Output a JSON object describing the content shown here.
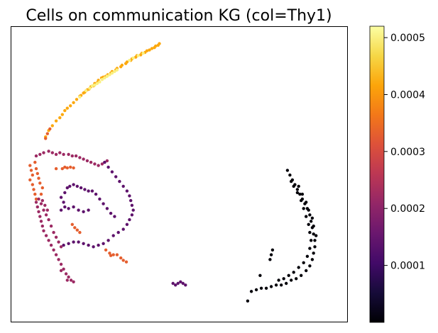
{
  "chart_data": {
    "type": "scatter",
    "title": "Cells on communication KG (col=Thy1)",
    "xlabel": "",
    "ylabel": "",
    "axes_ticks_visible": false,
    "colormap": "inferno",
    "colorbar": {
      "vmin": 0.0,
      "vmax": 0.00052,
      "ticks": [
        0.0001,
        0.0002,
        0.0003,
        0.0004,
        0.0005
      ],
      "tick_labels": [
        "0.0001",
        "0.0002",
        "0.0003",
        "0.0004",
        "0.0005"
      ],
      "placement": "right"
    },
    "series": [
      {
        "color_value": 0.00042,
        "points": [
          [
            0.55,
            0.38
          ],
          [
            0.6,
            0.3
          ],
          [
            0.66,
            0.24
          ],
          [
            0.72,
            0.18
          ],
          [
            0.78,
            0.14
          ],
          [
            0.82,
            0.1
          ],
          [
            0.86,
            0.05
          ],
          [
            0.9,
            0.02
          ],
          [
            0.95,
            -0.01
          ],
          [
            1.0,
            -0.05
          ],
          [
            1.05,
            -0.09
          ],
          [
            1.1,
            -0.13
          ],
          [
            1.16,
            -0.17
          ],
          [
            1.22,
            -0.21
          ],
          [
            1.28,
            -0.25
          ],
          [
            1.34,
            -0.29
          ],
          [
            1.4,
            -0.33
          ],
          [
            1.48,
            -0.37
          ],
          [
            1.55,
            -0.4
          ],
          [
            1.62,
            -0.44
          ],
          [
            1.7,
            -0.48
          ],
          [
            1.78,
            -0.52
          ],
          [
            1.86,
            -0.56
          ],
          [
            1.94,
            -0.6
          ],
          [
            2.02,
            -0.64
          ],
          [
            2.1,
            -0.67
          ],
          [
            2.18,
            -0.7
          ],
          [
            2.26,
            -0.73
          ],
          [
            2.32,
            -0.76
          ],
          [
            2.38,
            -0.79
          ],
          [
            1.45,
            -0.36
          ],
          [
            1.52,
            -0.38
          ],
          [
            1.6,
            -0.42
          ],
          [
            1.68,
            -0.46
          ],
          [
            1.76,
            -0.5
          ],
          [
            1.84,
            -0.54
          ],
          [
            1.92,
            -0.58
          ],
          [
            2.0,
            -0.62
          ],
          [
            2.08,
            -0.65
          ],
          [
            2.15,
            -0.68
          ],
          [
            2.22,
            -0.71
          ],
          [
            2.3,
            -0.74
          ],
          [
            2.36,
            -0.77
          ],
          [
            1.25,
            -0.22
          ],
          [
            1.32,
            -0.26
          ],
          [
            1.38,
            -0.3
          ],
          [
            1.18,
            -0.18
          ],
          [
            1.12,
            -0.14
          ]
        ]
      },
      {
        "color_value": 0.0005,
        "points": [
          [
            1.3,
            -0.26
          ],
          [
            1.34,
            -0.27
          ],
          [
            1.38,
            -0.29
          ],
          [
            1.42,
            -0.31
          ],
          [
            1.46,
            -0.34
          ],
          [
            1.5,
            -0.36
          ],
          [
            1.54,
            -0.38
          ],
          [
            1.58,
            -0.4
          ],
          [
            1.62,
            -0.42
          ],
          [
            1.66,
            -0.44
          ],
          [
            1.2,
            -0.2
          ],
          [
            1.26,
            -0.23
          ],
          [
            1.9,
            -0.58
          ],
          [
            1.96,
            -0.61
          ],
          [
            2.04,
            -0.64
          ],
          [
            2.12,
            -0.67
          ],
          [
            1.1,
            -0.12
          ],
          [
            1.7,
            -0.46
          ]
        ]
      },
      {
        "color_value": 0.00033,
        "points": [
          [
            0.55,
            0.4
          ],
          [
            0.58,
            0.34
          ],
          [
            0.62,
            0.28
          ],
          [
            0.3,
            0.74
          ],
          [
            0.32,
            0.8
          ],
          [
            0.34,
            0.86
          ],
          [
            0.3,
            0.92
          ],
          [
            0.34,
            0.98
          ],
          [
            0.36,
            1.04
          ],
          [
            0.38,
            1.1
          ],
          [
            0.4,
            1.16
          ],
          [
            0.4,
            0.78
          ],
          [
            0.42,
            0.84
          ],
          [
            0.44,
            0.9
          ],
          [
            0.46,
            0.96
          ],
          [
            0.38,
            0.7
          ],
          [
            0.5,
            1.02
          ],
          [
            0.48,
            1.1
          ],
          [
            0.82,
            0.78
          ],
          [
            0.86,
            0.76
          ],
          [
            0.9,
            0.77
          ],
          [
            0.95,
            0.76
          ],
          [
            1.0,
            0.77
          ],
          [
            0.98,
            1.48
          ],
          [
            1.02,
            1.52
          ],
          [
            1.06,
            1.55
          ],
          [
            1.1,
            1.58
          ],
          [
            1.52,
            1.8
          ],
          [
            1.58,
            1.84
          ],
          [
            1.64,
            1.86
          ],
          [
            1.7,
            1.86
          ],
          [
            1.76,
            1.9
          ],
          [
            1.8,
            1.93
          ],
          [
            1.85,
            1.95
          ],
          [
            1.6,
            1.87
          ],
          [
            0.72,
            0.78
          ]
        ]
      },
      {
        "color_value": 0.00022,
        "points": [
          [
            0.4,
            1.2
          ],
          [
            0.42,
            1.26
          ],
          [
            0.44,
            1.32
          ],
          [
            0.46,
            1.38
          ],
          [
            0.48,
            1.44
          ],
          [
            0.5,
            1.5
          ],
          [
            0.52,
            1.56
          ],
          [
            0.56,
            1.62
          ],
          [
            0.6,
            1.68
          ],
          [
            0.64,
            1.74
          ],
          [
            0.68,
            1.8
          ],
          [
            0.72,
            1.86
          ],
          [
            0.76,
            1.92
          ],
          [
            0.8,
            1.98
          ],
          [
            0.84,
            2.04
          ],
          [
            0.88,
            2.1
          ],
          [
            0.92,
            2.14
          ],
          [
            0.96,
            2.18
          ],
          [
            1.0,
            2.2
          ],
          [
            0.44,
            1.16
          ],
          [
            0.48,
            1.22
          ],
          [
            0.52,
            1.3
          ],
          [
            0.56,
            1.36
          ],
          [
            0.6,
            1.42
          ],
          [
            0.64,
            1.5
          ],
          [
            0.68,
            1.58
          ],
          [
            0.72,
            1.64
          ],
          [
            0.76,
            1.7
          ],
          [
            0.8,
            1.76
          ],
          [
            0.5,
            1.18
          ],
          [
            0.54,
            1.24
          ],
          [
            0.58,
            1.3
          ],
          [
            0.4,
            0.62
          ],
          [
            0.46,
            0.6
          ],
          [
            0.52,
            0.58
          ],
          [
            0.6,
            0.56
          ],
          [
            0.66,
            0.58
          ],
          [
            0.72,
            0.6
          ],
          [
            0.78,
            0.58
          ],
          [
            0.84,
            0.6
          ],
          [
            0.92,
            0.6
          ],
          [
            0.98,
            0.62
          ],
          [
            1.04,
            0.62
          ],
          [
            1.1,
            0.64
          ],
          [
            1.16,
            0.66
          ],
          [
            1.22,
            0.68
          ],
          [
            1.28,
            0.7
          ],
          [
            1.34,
            0.72
          ],
          [
            1.4,
            0.74
          ],
          [
            1.46,
            0.72
          ],
          [
            1.5,
            0.7
          ],
          [
            1.54,
            0.68
          ],
          [
            0.8,
            2.06
          ],
          [
            0.9,
            2.18
          ]
        ]
      },
      {
        "color_value": 0.00014,
        "points": [
          [
            1.5,
            0.7
          ],
          [
            1.56,
            0.76
          ],
          [
            1.62,
            0.82
          ],
          [
            1.68,
            0.88
          ],
          [
            1.74,
            0.94
          ],
          [
            1.8,
            1.0
          ],
          [
            1.86,
            1.06
          ],
          [
            1.9,
            1.12
          ],
          [
            1.92,
            1.18
          ],
          [
            1.94,
            1.24
          ],
          [
            1.96,
            1.3
          ],
          [
            1.94,
            1.36
          ],
          [
            1.9,
            1.42
          ],
          [
            1.86,
            1.48
          ],
          [
            1.8,
            1.54
          ],
          [
            1.72,
            1.58
          ],
          [
            1.64,
            1.62
          ],
          [
            1.56,
            1.68
          ],
          [
            1.48,
            1.72
          ],
          [
            1.4,
            1.74
          ],
          [
            1.32,
            1.76
          ],
          [
            1.24,
            1.74
          ],
          [
            1.16,
            1.72
          ],
          [
            1.08,
            1.7
          ],
          [
            1.0,
            1.7
          ],
          [
            0.92,
            1.72
          ],
          [
            0.84,
            1.74
          ],
          [
            0.8,
            1.3
          ],
          [
            0.86,
            1.26
          ],
          [
            0.92,
            1.28
          ],
          [
            1.0,
            1.26
          ],
          [
            1.08,
            1.3
          ],
          [
            1.16,
            1.32
          ],
          [
            1.24,
            1.3
          ],
          [
            0.84,
            1.2
          ],
          [
            0.8,
            1.14
          ],
          [
            0.86,
            1.08
          ],
          [
            0.9,
            1.02
          ],
          [
            0.94,
            1.0
          ],
          [
            1.0,
            0.98
          ],
          [
            1.06,
            1.0
          ],
          [
            1.12,
            1.02
          ],
          [
            1.18,
            1.04
          ],
          [
            1.24,
            1.06
          ],
          [
            1.3,
            1.06
          ],
          [
            1.36,
            1.1
          ],
          [
            1.42,
            1.16
          ],
          [
            1.48,
            1.22
          ],
          [
            1.54,
            1.28
          ],
          [
            1.6,
            1.34
          ],
          [
            1.66,
            1.38
          ],
          [
            2.6,
            2.22
          ],
          [
            2.64,
            2.24
          ],
          [
            2.68,
            2.22
          ],
          [
            2.72,
            2.2
          ],
          [
            2.76,
            2.22
          ],
          [
            2.8,
            2.24
          ]
        ]
      },
      {
        "color_value": 5e-06,
        "points": [
          [
            4.44,
            0.8
          ],
          [
            4.48,
            0.86
          ],
          [
            4.52,
            0.92
          ],
          [
            4.56,
            0.98
          ],
          [
            4.6,
            1.04
          ],
          [
            4.64,
            1.1
          ],
          [
            4.68,
            1.16
          ],
          [
            4.72,
            1.22
          ],
          [
            4.76,
            1.28
          ],
          [
            4.8,
            1.36
          ],
          [
            4.82,
            1.44
          ],
          [
            4.84,
            1.52
          ],
          [
            4.86,
            1.6
          ],
          [
            4.88,
            1.68
          ],
          [
            4.88,
            1.76
          ],
          [
            4.86,
            1.84
          ],
          [
            4.84,
            1.92
          ],
          [
            4.8,
            2.0
          ],
          [
            4.74,
            2.06
          ],
          [
            4.66,
            2.12
          ],
          [
            4.58,
            2.16
          ],
          [
            4.5,
            2.18
          ],
          [
            4.42,
            2.22
          ],
          [
            4.34,
            2.24
          ],
          [
            4.26,
            2.24
          ],
          [
            4.18,
            2.26
          ],
          [
            4.1,
            2.28
          ],
          [
            4.02,
            2.28
          ],
          [
            3.94,
            2.3
          ],
          [
            3.86,
            2.32
          ],
          [
            4.5,
            0.94
          ],
          [
            4.54,
            1.0
          ],
          [
            4.6,
            1.08
          ],
          [
            4.66,
            1.18
          ],
          [
            4.7,
            1.28
          ],
          [
            4.74,
            1.38
          ],
          [
            4.78,
            1.48
          ],
          [
            4.8,
            1.58
          ],
          [
            4.82,
            1.68
          ],
          [
            4.8,
            1.78
          ],
          [
            4.76,
            1.88
          ],
          [
            4.7,
            1.96
          ],
          [
            4.62,
            2.02
          ],
          [
            4.54,
            2.08
          ],
          [
            4.46,
            2.12
          ],
          [
            4.38,
            2.16
          ],
          [
            4.3,
            2.18
          ],
          [
            4.62,
            1.0
          ],
          [
            4.68,
            1.1
          ],
          [
            4.74,
            1.2
          ],
          [
            4.78,
            1.3
          ],
          [
            4.84,
            1.4
          ],
          [
            4.86,
            1.5
          ],
          [
            4.9,
            1.62
          ],
          [
            4.18,
            1.86
          ],
          [
            4.2,
            1.8
          ],
          [
            4.16,
            1.92
          ],
          [
            4.0,
            2.12
          ],
          [
            3.8,
            2.44
          ]
        ]
      }
    ]
  }
}
